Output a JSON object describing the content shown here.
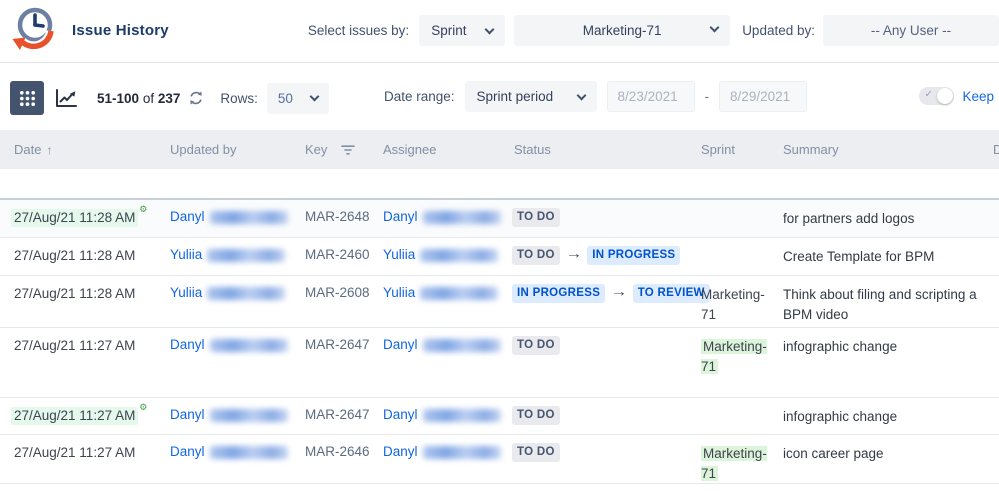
{
  "app": {
    "title": "Issue History"
  },
  "colors": {
    "navy": "#1c3a6a",
    "orange": "#e8512b",
    "link_blue": "#1166e0",
    "badge_gray_bg": "#e8eaee",
    "badge_gray_text": "#46546e",
    "badge_blue_bg": "#ddebff",
    "badge_blue_text": "#0052cc",
    "date_highlight_green": "#e4f8ec",
    "sprint_highlight_green": "#dcf4da",
    "table_header_bg": "#eceef2",
    "keep_blue": "#1668dc",
    "grid_button_bg": "#44546f"
  },
  "icons": {
    "logo": "clock-history",
    "grid_view": "grid-dots",
    "chart_view": "trend-line-chart",
    "refresh": "refresh-arrows",
    "sort": "↑",
    "filter": "filter-lines",
    "status_arrow": "→",
    "gear": "⚙",
    "toggle_check": "✓",
    "chevron": "chevron-down"
  },
  "header": {
    "select_issues_label": "Select issues by:",
    "select_mode": "Sprint",
    "select_value": "Marketing-71",
    "updated_by_label": "Updated by:",
    "updated_by_value": "-- Any User --"
  },
  "toolbar": {
    "range": "51-100",
    "of": "of",
    "total": "237",
    "rows_label": "Rows:",
    "rows_value": "50",
    "date_range_label": "Date range:",
    "date_range_mode": "Sprint period",
    "date_from": "8/23/2021",
    "date_sep": "-",
    "date_to": "8/29/2021",
    "keep_label": "Keep"
  },
  "table": {
    "columns": [
      "Date",
      "Updated by",
      "Key",
      "Assignee",
      "Status",
      "Sprint",
      "Summary",
      "D"
    ],
    "rows": [
      {
        "date": {
          "text": "27/Aug/21 11:28 AM",
          "highlight": true,
          "gear": true
        },
        "updated_by": "Danyl",
        "key": "MAR-2648",
        "assignee": "Danyl",
        "status": [
          {
            "label": "TO DO",
            "style": "gray"
          }
        ],
        "sprint": {
          "label": "",
          "highlight": false
        },
        "summary": "for partners add logos"
      },
      {
        "date": {
          "text": "27/Aug/21 11:28 AM",
          "highlight": false,
          "gear": false
        },
        "updated_by": "Yuliia",
        "key": "MAR-2460",
        "assignee": "Yuliia",
        "status": [
          {
            "label": "TO DO",
            "style": "gray"
          },
          {
            "label": "IN PROGRESS",
            "style": "blue"
          }
        ],
        "sprint": {
          "label": "",
          "highlight": false
        },
        "summary": "Create Template for BPM"
      },
      {
        "date": {
          "text": "27/Aug/21 11:28 AM",
          "highlight": false,
          "gear": false
        },
        "updated_by": "Yuliia",
        "key": "MAR-2608",
        "assignee": "Yuliia",
        "status": [
          {
            "label": "IN PROGRESS",
            "style": "blue"
          },
          {
            "label": "TO REVIEW",
            "style": "blue"
          }
        ],
        "sprint": {
          "label": "Marketing-71",
          "highlight": false
        },
        "summary": "Think about filing and scripting a BPM video"
      },
      {
        "date": {
          "text": "27/Aug/21 11:27 AM",
          "highlight": false,
          "gear": false
        },
        "updated_by": "Danyl",
        "key": "MAR-2647",
        "assignee": "Danyl",
        "status": [
          {
            "label": "TO DO",
            "style": "gray"
          }
        ],
        "sprint": {
          "label": "Marketing-71",
          "highlight": true
        },
        "summary": "infographic change"
      },
      {
        "date": {
          "text": "27/Aug/21 11:27 AM",
          "highlight": true,
          "gear": true
        },
        "updated_by": "Danyl",
        "key": "MAR-2647",
        "assignee": "Danyl",
        "status": [
          {
            "label": "TO DO",
            "style": "gray"
          }
        ],
        "sprint": {
          "label": "",
          "highlight": false
        },
        "summary": "infographic change"
      },
      {
        "date": {
          "text": "27/Aug/21 11:27 AM",
          "highlight": false,
          "gear": false
        },
        "updated_by": "Danyl",
        "key": "MAR-2646",
        "assignee": "Danyl",
        "status": [
          {
            "label": "TO DO",
            "style": "gray"
          }
        ],
        "sprint": {
          "label": "Marketing-71",
          "highlight": true
        },
        "summary": "icon career page"
      }
    ]
  }
}
